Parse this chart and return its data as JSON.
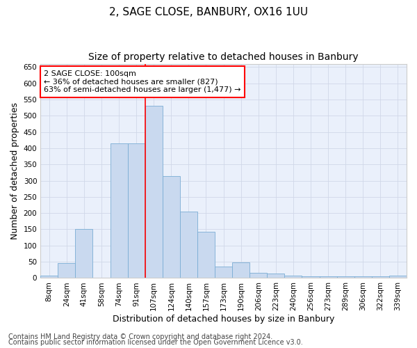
{
  "title": "2, SAGE CLOSE, BANBURY, OX16 1UU",
  "subtitle": "Size of property relative to detached houses in Banbury",
  "xlabel": "Distribution of detached houses by size in Banbury",
  "ylabel": "Number of detached properties",
  "categories": [
    "8sqm",
    "24sqm",
    "41sqm",
    "58sqm",
    "74sqm",
    "91sqm",
    "107sqm",
    "124sqm",
    "140sqm",
    "157sqm",
    "173sqm",
    "190sqm",
    "206sqm",
    "223sqm",
    "240sqm",
    "256sqm",
    "273sqm",
    "289sqm",
    "306sqm",
    "322sqm",
    "339sqm"
  ],
  "values": [
    8,
    45,
    150,
    0,
    415,
    415,
    530,
    315,
    205,
    143,
    35,
    48,
    15,
    13,
    8,
    5,
    6,
    5,
    6,
    5,
    8
  ],
  "bar_color": "#c9d9ef",
  "bar_edge_color": "#7aadd4",
  "vline_color": "red",
  "vline_x_idx": 6,
  "annotation_text": "2 SAGE CLOSE: 100sqm\n← 36% of detached houses are smaller (827)\n63% of semi-detached houses are larger (1,477) →",
  "annotation_box_color": "white",
  "annotation_box_edge_color": "red",
  "ylim": [
    0,
    660
  ],
  "yticks": [
    0,
    50,
    100,
    150,
    200,
    250,
    300,
    350,
    400,
    450,
    500,
    550,
    600,
    650
  ],
  "footer1": "Contains HM Land Registry data © Crown copyright and database right 2024.",
  "footer2": "Contains public sector information licensed under the Open Government Licence v3.0.",
  "background_color": "#eaf0fb",
  "grid_color": "#d0d8e8",
  "title_fontsize": 11,
  "subtitle_fontsize": 10,
  "axis_label_fontsize": 9,
  "tick_fontsize": 7.5,
  "footer_fontsize": 7,
  "annotation_fontsize": 8
}
